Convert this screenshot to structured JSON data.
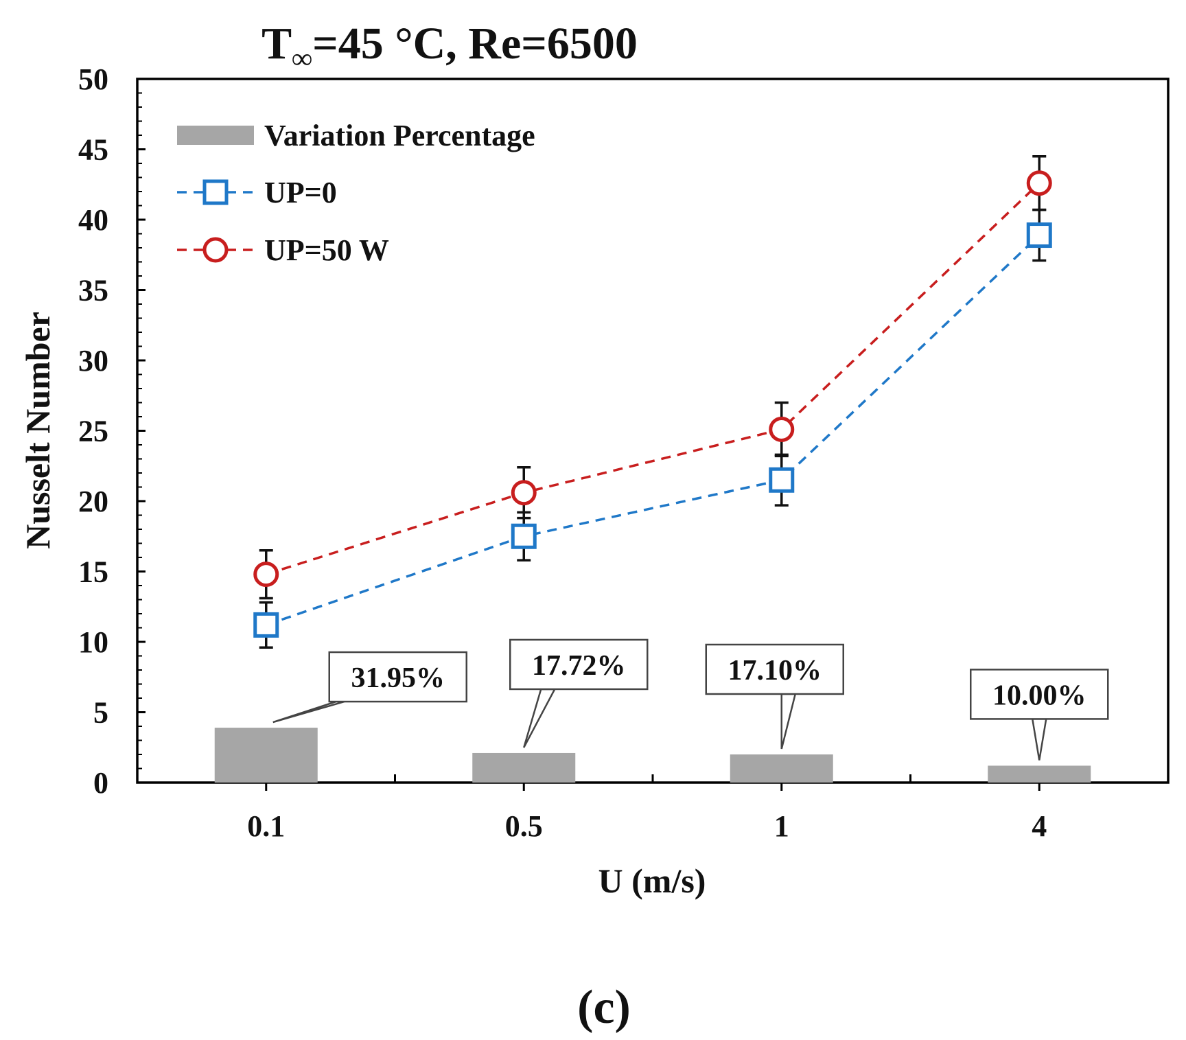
{
  "chart_data": {
    "type": "bar+line",
    "title": {
      "prefix": "T",
      "subscript": "∞",
      "suffix": "=45 °C, Re=6500"
    },
    "xlabel": "U (m/s)",
    "ylabel": "Nusselt Number",
    "categories": [
      "0.1",
      "0.5",
      "1",
      "4"
    ],
    "ylim": [
      0,
      50
    ],
    "yticks": [
      "0",
      "5",
      "10",
      "15",
      "20",
      "25",
      "30",
      "35",
      "40",
      "45",
      "50"
    ],
    "grid": false,
    "legend_position": "top-left",
    "bars": {
      "name": "Variation Percentage",
      "values": [
        3.9,
        2.1,
        2.0,
        1.2
      ],
      "labels": [
        "31.95%",
        "17.72%",
        "17.10%",
        "10.00%"
      ],
      "color": "#a6a6a6"
    },
    "series": [
      {
        "name": "UP=0",
        "values": [
          11.2,
          17.5,
          21.5,
          38.9
        ],
        "error": [
          1.6,
          1.7,
          1.8,
          1.8
        ],
        "color": "#1f78c8",
        "marker": "square"
      },
      {
        "name": "UP=50 W",
        "values": [
          14.8,
          20.6,
          25.1,
          42.6
        ],
        "error": [
          1.7,
          1.8,
          1.9,
          1.9
        ],
        "color": "#c81e1e",
        "marker": "circle"
      }
    ]
  },
  "caption": "(c)"
}
